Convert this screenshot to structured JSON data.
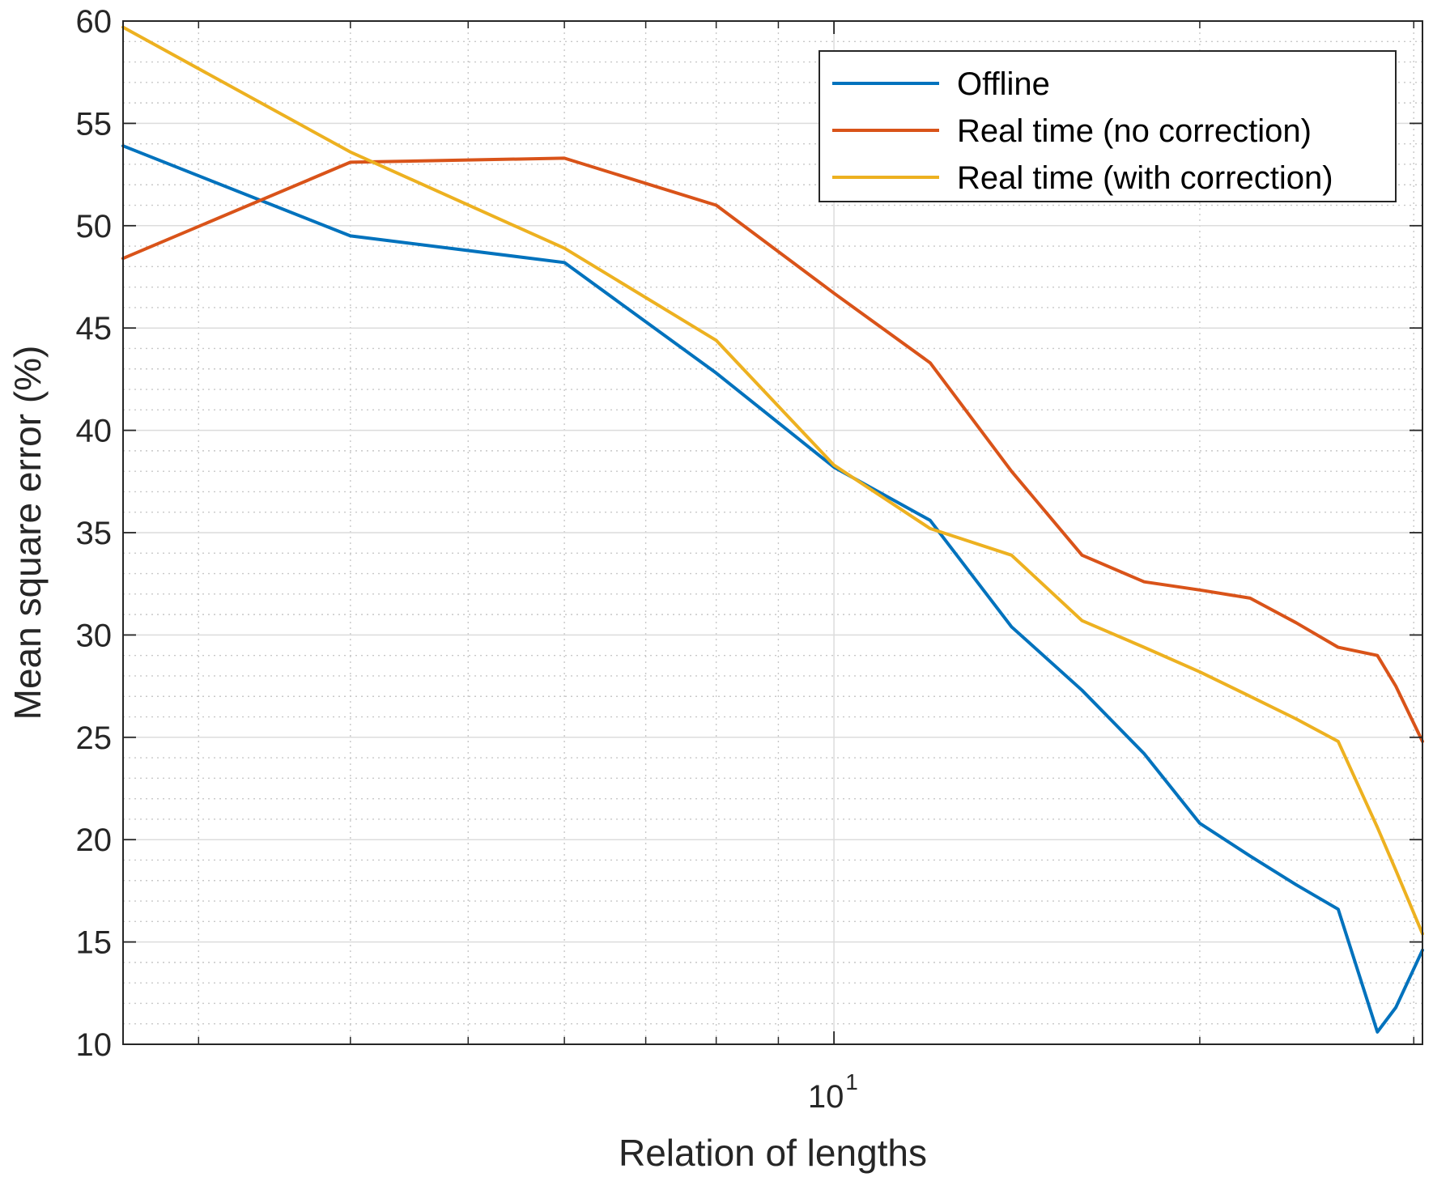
{
  "chart_data": {
    "type": "line",
    "title": "",
    "xlabel": "Relation of lengths",
    "ylabel": "Mean square error (%)",
    "xscale": "log",
    "xlim": [
      2.6,
      30.5
    ],
    "ylim": [
      10,
      60
    ],
    "yticks": [
      10,
      15,
      20,
      25,
      30,
      35,
      40,
      45,
      50,
      55,
      60
    ],
    "xtick_major": {
      "value": 10,
      "base": "10",
      "exponent": "1"
    },
    "grid": true,
    "legend_position": "top-right",
    "x": [
      2.6,
      4,
      6,
      8,
      10,
      12,
      14,
      16,
      18,
      20,
      22,
      24,
      26,
      28,
      29,
      30.5
    ],
    "series": [
      {
        "name": "Offline",
        "color": "#0072BD",
        "values": [
          53.9,
          49.5,
          48.2,
          42.8,
          38.2,
          35.6,
          30.4,
          27.3,
          24.2,
          20.8,
          19.2,
          17.8,
          16.6,
          10.6,
          11.8,
          14.6
        ]
      },
      {
        "name": "Real time (no correction)",
        "color": "#D95319",
        "values": [
          48.4,
          53.1,
          53.3,
          51.0,
          46.7,
          43.3,
          38.0,
          33.9,
          32.6,
          32.2,
          31.8,
          30.6,
          29.4,
          29.0,
          27.5,
          24.8
        ]
      },
      {
        "name": "Real time (with correction)",
        "color": "#EDB120",
        "values": [
          59.7,
          53.6,
          48.9,
          44.4,
          38.3,
          35.2,
          33.9,
          30.7,
          29.4,
          28.2,
          27.0,
          25.9,
          24.8,
          20.6,
          18.5,
          15.4
        ]
      }
    ]
  }
}
